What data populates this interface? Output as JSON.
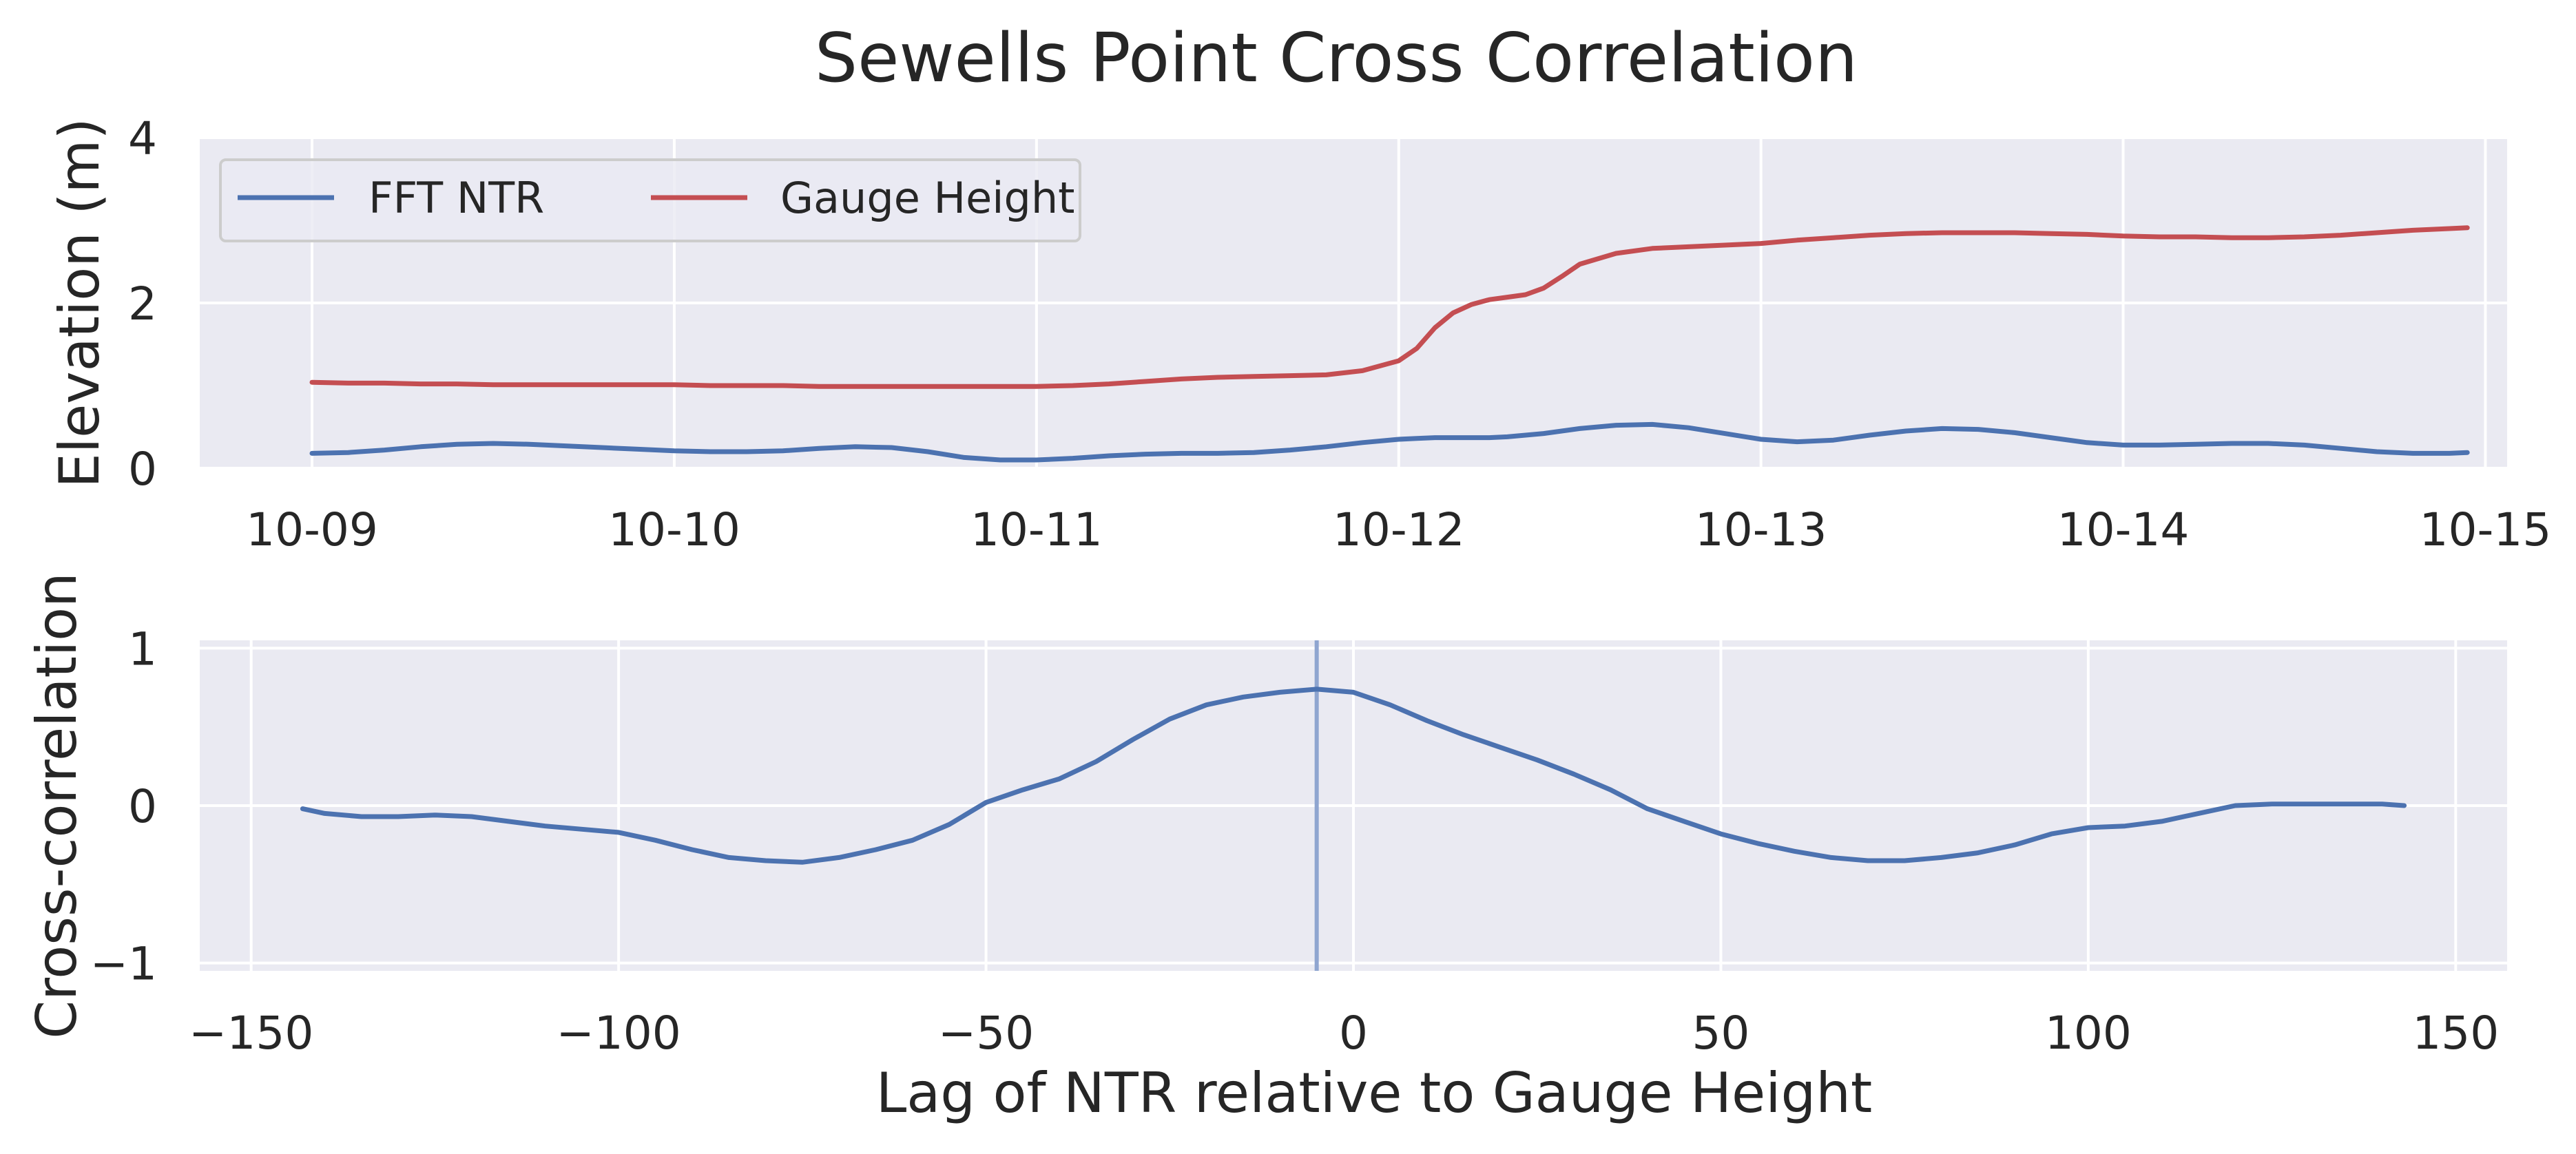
{
  "colors": {
    "background": "#eaeaf2",
    "grid": "#ffffff",
    "text": "#262626",
    "ntr": "#4c72b0",
    "gauge": "#c44e52",
    "lag_marker": "#8fa5d0",
    "legend_border": "#cccccc"
  },
  "chart_data": [
    {
      "type": "line",
      "title": "Sewells Point Cross Correlation",
      "xlabel": "",
      "ylabel": "Elevation (m)",
      "ylim": [
        0,
        4
      ],
      "xlim_days": [
        8.69,
        15.06
      ],
      "x_ticks": [
        "10-09",
        "10-10",
        "10-11",
        "10-12",
        "10-13",
        "10-14",
        "10-15"
      ],
      "x_tick_days": [
        9,
        10,
        11,
        12,
        13,
        14,
        15
      ],
      "y_ticks": [
        0,
        2,
        4
      ],
      "grid": true,
      "legend_placement": "top-left",
      "x_days": [
        9.0,
        9.1,
        9.2,
        9.3,
        9.4,
        9.5,
        9.6,
        9.7,
        9.8,
        9.9,
        10.0,
        10.1,
        10.2,
        10.3,
        10.4,
        10.5,
        10.6,
        10.7,
        10.8,
        10.9,
        11.0,
        11.1,
        11.2,
        11.3,
        11.4,
        11.5,
        11.6,
        11.7,
        11.8,
        11.9,
        12.0,
        12.05,
        12.1,
        12.15,
        12.2,
        12.25,
        12.3,
        12.35,
        12.4,
        12.45,
        12.5,
        12.6,
        12.7,
        12.8,
        12.9,
        13.0,
        13.1,
        13.2,
        13.3,
        13.4,
        13.5,
        13.6,
        13.7,
        13.8,
        13.9,
        14.0,
        14.1,
        14.2,
        14.3,
        14.4,
        14.5,
        14.6,
        14.7,
        14.8,
        14.9,
        14.95
      ],
      "series": [
        {
          "name": "FFT NTR",
          "color": "#4c72b0",
          "values": [
            0.18,
            0.19,
            0.22,
            0.26,
            0.29,
            0.3,
            0.29,
            0.27,
            0.25,
            0.23,
            0.21,
            0.2,
            0.2,
            0.21,
            0.24,
            0.26,
            0.25,
            0.2,
            0.13,
            0.1,
            0.1,
            0.12,
            0.15,
            0.17,
            0.18,
            0.18,
            0.19,
            0.22,
            0.26,
            0.31,
            0.35,
            0.36,
            0.37,
            0.37,
            0.37,
            0.37,
            0.38,
            0.4,
            0.42,
            0.45,
            0.48,
            0.52,
            0.53,
            0.49,
            0.42,
            0.35,
            0.32,
            0.34,
            0.4,
            0.45,
            0.48,
            0.47,
            0.43,
            0.37,
            0.31,
            0.28,
            0.28,
            0.29,
            0.3,
            0.3,
            0.28,
            0.24,
            0.2,
            0.18,
            0.18,
            0.19
          ]
        },
        {
          "name": "Gauge Height",
          "color": "#c44e52",
          "values": [
            1.04,
            1.03,
            1.03,
            1.02,
            1.02,
            1.01,
            1.01,
            1.01,
            1.01,
            1.01,
            1.01,
            1.0,
            1.0,
            1.0,
            0.99,
            0.99,
            0.99,
            0.99,
            0.99,
            0.99,
            0.99,
            1.0,
            1.02,
            1.05,
            1.08,
            1.1,
            1.11,
            1.12,
            1.13,
            1.18,
            1.3,
            1.45,
            1.7,
            1.88,
            1.98,
            2.04,
            2.07,
            2.1,
            2.18,
            2.32,
            2.47,
            2.6,
            2.66,
            2.68,
            2.7,
            2.72,
            2.76,
            2.79,
            2.82,
            2.84,
            2.85,
            2.85,
            2.85,
            2.84,
            2.83,
            2.81,
            2.8,
            2.8,
            2.79,
            2.79,
            2.8,
            2.82,
            2.85,
            2.88,
            2.9,
            2.91
          ]
        }
      ]
    },
    {
      "type": "line",
      "xlabel": "Lag of NTR relative to Gauge Height",
      "ylabel": "Cross-correlation",
      "xlim": [
        -157,
        157
      ],
      "ylim": [
        -1.05,
        1.05
      ],
      "x_ticks": [
        -150,
        -100,
        -50,
        0,
        50,
        100,
        150
      ],
      "x_tick_labels": [
        "−150",
        "−100",
        "−50",
        "0",
        "50",
        "100",
        "150"
      ],
      "y_ticks": [
        -1,
        0,
        1
      ],
      "y_tick_labels": [
        "−1",
        "0",
        "1"
      ],
      "grid": true,
      "peak_lag": -5,
      "x": [
        -143,
        -140,
        -135,
        -130,
        -125,
        -120,
        -115,
        -110,
        -105,
        -100,
        -95,
        -90,
        -85,
        -80,
        -75,
        -70,
        -65,
        -60,
        -55,
        -50,
        -45,
        -40,
        -35,
        -30,
        -25,
        -20,
        -15,
        -10,
        -5,
        0,
        5,
        10,
        15,
        20,
        25,
        30,
        35,
        40,
        45,
        50,
        55,
        60,
        65,
        70,
        75,
        80,
        85,
        90,
        95,
        100,
        105,
        110,
        115,
        120,
        125,
        130,
        135,
        140,
        143
      ],
      "series": [
        {
          "color": "#4c72b0",
          "values": [
            -0.02,
            -0.05,
            -0.07,
            -0.07,
            -0.06,
            -0.07,
            -0.1,
            -0.13,
            -0.15,
            -0.17,
            -0.22,
            -0.28,
            -0.33,
            -0.35,
            -0.36,
            -0.33,
            -0.28,
            -0.22,
            -0.12,
            0.02,
            0.1,
            0.17,
            0.28,
            0.42,
            0.55,
            0.64,
            0.69,
            0.72,
            0.74,
            0.72,
            0.64,
            0.54,
            0.45,
            0.37,
            0.29,
            0.2,
            0.1,
            -0.02,
            -0.1,
            -0.18,
            -0.24,
            -0.29,
            -0.33,
            -0.35,
            -0.35,
            -0.33,
            -0.3,
            -0.25,
            -0.18,
            -0.14,
            -0.13,
            -0.1,
            -0.05,
            0.0,
            0.01,
            0.01,
            0.01,
            0.01,
            0.0
          ]
        }
      ]
    }
  ]
}
